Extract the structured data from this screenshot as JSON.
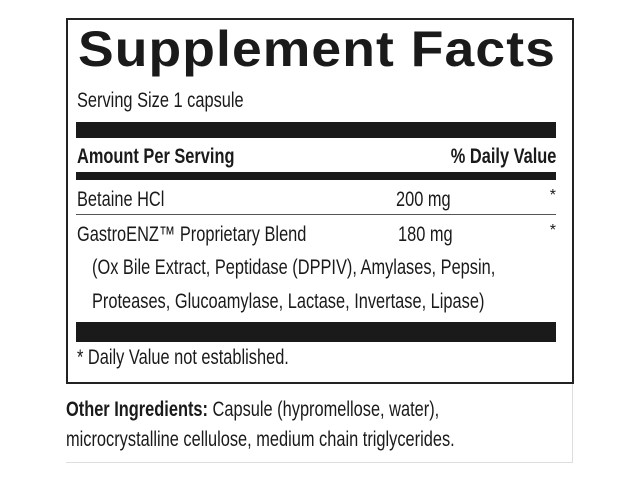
{
  "title": "Supplement Facts",
  "serving_size": "Serving Size 1 capsule",
  "header": {
    "amount": "Amount Per Serving",
    "daily_value": "% Daily Value"
  },
  "rows": [
    {
      "name": "Betaine HCl",
      "amount": "200 mg",
      "dv": "*"
    },
    {
      "name": "GastroENZ™ Proprietary Blend",
      "amount": "180 mg",
      "dv": "*"
    }
  ],
  "blend_detail": [
    "(Ox Bile Extract, Peptidase (DPPIV), Amylases, Pepsin,",
    "Proteases, Glucoamylase, Lactase, Invertase, Lipase)"
  ],
  "footnote": "* Daily Value not established.",
  "other_ingredients": {
    "label": "Other Ingredients:",
    "line1": " Capsule (hypromellose, water),",
    "line2": "microcrystalline cellulose, medium chain triglycerides."
  }
}
